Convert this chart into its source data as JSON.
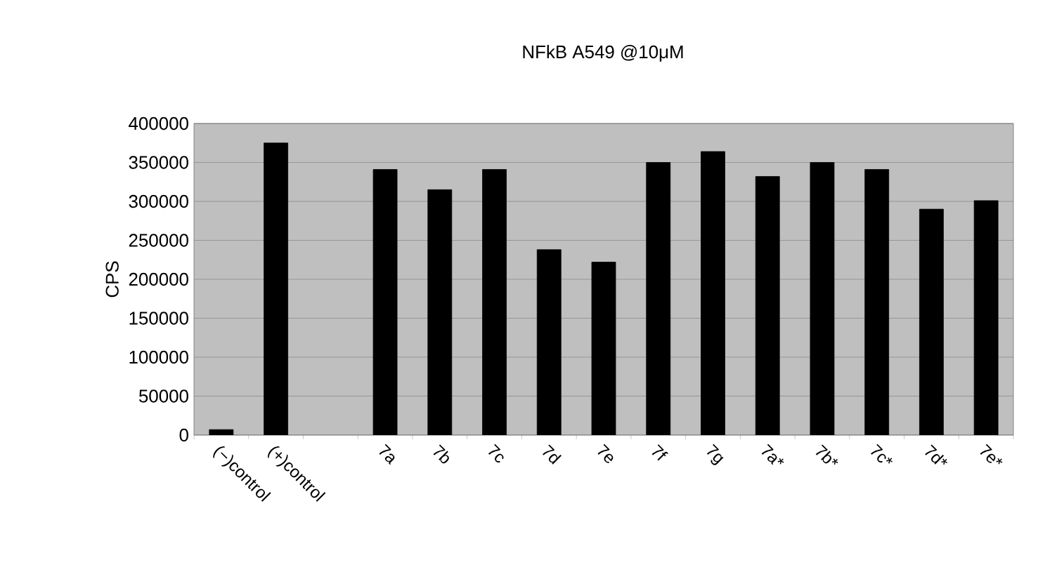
{
  "chart_data": {
    "type": "bar",
    "title": "NFkB A549 @10μM",
    "ylabel": "CPS",
    "categories": [
      "(−)control",
      "(+)control",
      null,
      "7a",
      "7b",
      "7c",
      "7d",
      "7e",
      "7f",
      "7g",
      "7a*",
      "7b*",
      "7c*",
      "7d*",
      "7e*"
    ],
    "values": [
      7000,
      375000,
      null,
      341000,
      315000,
      341000,
      238000,
      222000,
      350000,
      364000,
      332000,
      350000,
      341000,
      290000,
      301000
    ],
    "color": "#000000",
    "ylim": [
      0,
      400000
    ],
    "yticks": [
      0,
      50000,
      100000,
      150000,
      200000,
      250000,
      300000,
      350000,
      400000
    ],
    "grid": "y"
  }
}
